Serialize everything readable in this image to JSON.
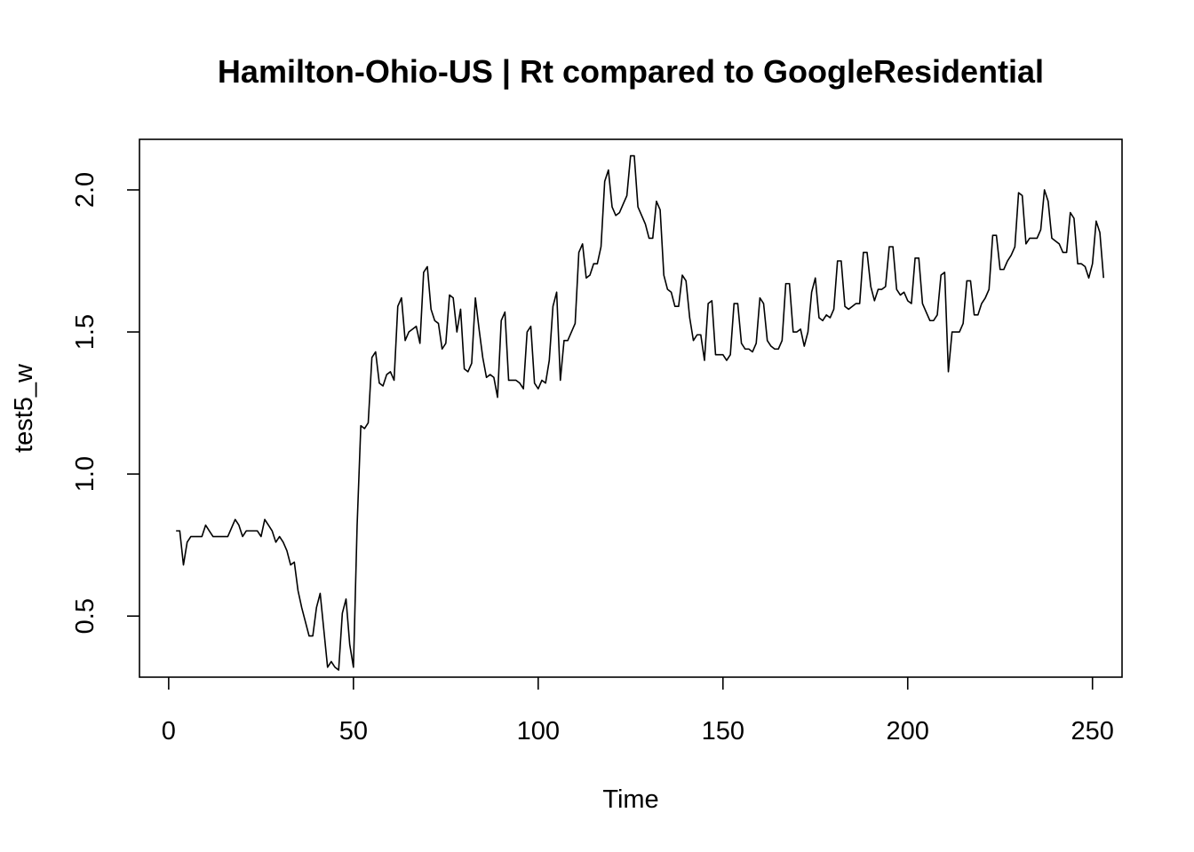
{
  "chart_data": {
    "type": "line",
    "title": "Hamilton-Ohio-US | Rt compared to GoogleResidential",
    "xlabel": "Time",
    "ylabel": "test5_w",
    "xlim": [
      -7.9,
      258
    ],
    "ylim": [
      0.285,
      2.178
    ],
    "x_ticks": [
      0,
      50,
      100,
      150,
      200,
      250
    ],
    "x_tick_labels": [
      "0",
      "50",
      "100",
      "150",
      "200",
      "250"
    ],
    "y_ticks": [
      0.5,
      1.0,
      1.5,
      2.0
    ],
    "y_tick_labels": [
      "0.5",
      "1.0",
      "1.5",
      "2.0"
    ],
    "grid": false,
    "legend": "none",
    "line_color": "#000000",
    "series": [
      {
        "x_start": 2,
        "x_step": 1,
        "values": [
          0.8,
          0.8,
          0.68,
          0.76,
          0.78,
          0.78,
          0.78,
          0.78,
          0.82,
          0.8,
          0.78,
          0.78,
          0.78,
          0.78,
          0.78,
          0.81,
          0.84,
          0.82,
          0.78,
          0.8,
          0.8,
          0.8,
          0.8,
          0.78,
          0.84,
          0.82,
          0.8,
          0.76,
          0.78,
          0.76,
          0.73,
          0.68,
          0.69,
          0.59,
          0.53,
          0.48,
          0.43,
          0.43,
          0.53,
          0.58,
          0.45,
          0.32,
          0.34,
          0.32,
          0.31,
          0.51,
          0.56,
          0.4,
          0.32,
          0.82,
          1.17,
          1.16,
          1.18,
          1.41,
          1.43,
          1.32,
          1.31,
          1.35,
          1.36,
          1.33,
          1.59,
          1.62,
          1.47,
          1.5,
          1.51,
          1.52,
          1.46,
          1.71,
          1.73,
          1.58,
          1.54,
          1.53,
          1.44,
          1.46,
          1.63,
          1.62,
          1.5,
          1.58,
          1.37,
          1.36,
          1.39,
          1.62,
          1.51,
          1.41,
          1.34,
          1.35,
          1.34,
          1.27,
          1.54,
          1.57,
          1.33,
          1.33,
          1.33,
          1.32,
          1.3,
          1.5,
          1.52,
          1.32,
          1.3,
          1.33,
          1.32,
          1.4,
          1.59,
          1.64,
          1.33,
          1.47,
          1.47,
          1.5,
          1.53,
          1.78,
          1.81,
          1.69,
          1.7,
          1.74,
          1.74,
          1.8,
          2.03,
          2.07,
          1.94,
          1.91,
          1.92,
          1.95,
          1.98,
          2.12,
          2.12,
          1.94,
          1.91,
          1.88,
          1.83,
          1.83,
          1.96,
          1.93,
          1.7,
          1.65,
          1.64,
          1.59,
          1.59,
          1.7,
          1.68,
          1.55,
          1.47,
          1.49,
          1.49,
          1.4,
          1.6,
          1.61,
          1.42,
          1.42,
          1.42,
          1.4,
          1.42,
          1.6,
          1.6,
          1.46,
          1.44,
          1.44,
          1.43,
          1.46,
          1.62,
          1.6,
          1.47,
          1.45,
          1.44,
          1.44,
          1.47,
          1.67,
          1.67,
          1.5,
          1.5,
          1.51,
          1.45,
          1.5,
          1.64,
          1.69,
          1.55,
          1.54,
          1.56,
          1.55,
          1.58,
          1.75,
          1.75,
          1.59,
          1.58,
          1.59,
          1.6,
          1.6,
          1.78,
          1.78,
          1.66,
          1.61,
          1.65,
          1.65,
          1.66,
          1.8,
          1.8,
          1.65,
          1.63,
          1.64,
          1.61,
          1.6,
          1.76,
          1.76,
          1.6,
          1.57,
          1.54,
          1.54,
          1.56,
          1.7,
          1.71,
          1.36,
          1.5,
          1.5,
          1.5,
          1.53,
          1.68,
          1.68,
          1.56,
          1.56,
          1.6,
          1.62,
          1.65,
          1.84,
          1.84,
          1.72,
          1.72,
          1.75,
          1.77,
          1.8,
          1.99,
          1.98,
          1.81,
          1.83,
          1.83,
          1.83,
          1.86,
          2.0,
          1.96,
          1.83,
          1.82,
          1.81,
          1.78,
          1.78,
          1.92,
          1.9,
          1.74,
          1.74,
          1.73,
          1.69,
          1.74,
          1.89,
          1.85,
          1.69
        ]
      }
    ]
  }
}
